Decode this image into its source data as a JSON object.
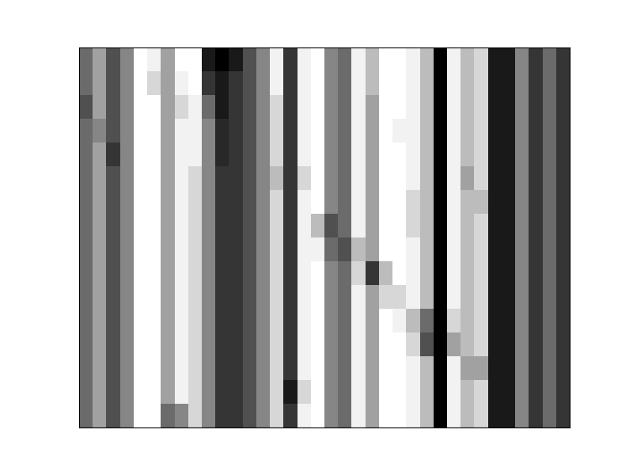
{
  "chart_data": {
    "type": "heatmap",
    "color": "black",
    "tick_labels": false,
    "cells": [
      [
        0.6,
        0.4,
        0.7,
        0.5,
        0.05,
        0.1,
        0.4,
        0.05,
        0.05,
        0.9,
        1.0,
        0.9,
        0.7,
        0.5,
        0.1,
        0.8,
        0.1,
        0.05,
        0.5,
        0.6,
        0.1,
        0.3,
        0.05,
        0.05,
        0.1,
        0.3,
        1.0,
        0.1,
        0.3,
        0.2,
        0.9,
        0.9,
        0.5,
        0.8,
        0.6,
        0.8
      ],
      [
        0.6,
        0.4,
        0.7,
        0.5,
        0.05,
        0.2,
        0.4,
        0.1,
        0.05,
        0.8,
        0.9,
        0.8,
        0.7,
        0.5,
        0.1,
        0.8,
        0.1,
        0.05,
        0.5,
        0.6,
        0.1,
        0.3,
        0.05,
        0.05,
        0.1,
        0.3,
        1.0,
        0.1,
        0.3,
        0.2,
        0.9,
        0.9,
        0.5,
        0.8,
        0.6,
        0.8
      ],
      [
        0.7,
        0.4,
        0.7,
        0.5,
        0.05,
        0.05,
        0.4,
        0.2,
        0.1,
        0.6,
        0.9,
        0.8,
        0.7,
        0.5,
        0.2,
        0.8,
        0.1,
        0.05,
        0.5,
        0.6,
        0.1,
        0.4,
        0.05,
        0.05,
        0.1,
        0.3,
        1.0,
        0.1,
        0.3,
        0.2,
        0.9,
        0.9,
        0.5,
        0.8,
        0.6,
        0.8
      ],
      [
        0.6,
        0.5,
        0.7,
        0.5,
        0.05,
        0.05,
        0.4,
        0.1,
        0.1,
        0.5,
        0.85,
        0.8,
        0.7,
        0.5,
        0.2,
        0.8,
        0.1,
        0.05,
        0.5,
        0.6,
        0.1,
        0.4,
        0.05,
        0.1,
        0.1,
        0.3,
        1.0,
        0.1,
        0.3,
        0.2,
        0.9,
        0.9,
        0.5,
        0.8,
        0.6,
        0.8
      ],
      [
        0.6,
        0.4,
        0.8,
        0.5,
        0.05,
        0.05,
        0.4,
        0.1,
        0.1,
        0.5,
        0.85,
        0.8,
        0.7,
        0.5,
        0.2,
        0.8,
        0.1,
        0.05,
        0.5,
        0.6,
        0.1,
        0.4,
        0.05,
        0.05,
        0.1,
        0.3,
        1.0,
        0.1,
        0.3,
        0.2,
        0.9,
        0.9,
        0.5,
        0.8,
        0.6,
        0.8
      ],
      [
        0.6,
        0.4,
        0.7,
        0.5,
        0.05,
        0.05,
        0.4,
        0.1,
        0.2,
        0.5,
        0.8,
        0.8,
        0.7,
        0.5,
        0.3,
        0.8,
        0.2,
        0.05,
        0.5,
        0.6,
        0.1,
        0.4,
        0.05,
        0.05,
        0.1,
        0.3,
        1.0,
        0.1,
        0.4,
        0.2,
        0.9,
        0.9,
        0.5,
        0.8,
        0.6,
        0.8
      ],
      [
        0.6,
        0.4,
        0.7,
        0.5,
        0.05,
        0.05,
        0.4,
        0.1,
        0.2,
        0.5,
        0.8,
        0.8,
        0.7,
        0.5,
        0.2,
        0.8,
        0.1,
        0.05,
        0.5,
        0.6,
        0.1,
        0.4,
        0.05,
        0.05,
        0.2,
        0.3,
        1.0,
        0.1,
        0.3,
        0.3,
        0.9,
        0.9,
        0.5,
        0.8,
        0.6,
        0.8
      ],
      [
        0.6,
        0.4,
        0.7,
        0.5,
        0.05,
        0.05,
        0.4,
        0.1,
        0.2,
        0.5,
        0.8,
        0.8,
        0.7,
        0.5,
        0.2,
        0.8,
        0.1,
        0.3,
        0.7,
        0.6,
        0.1,
        0.4,
        0.05,
        0.05,
        0.2,
        0.3,
        1.0,
        0.1,
        0.3,
        0.2,
        0.9,
        0.9,
        0.5,
        0.8,
        0.6,
        0.8
      ],
      [
        0.6,
        0.4,
        0.7,
        0.5,
        0.05,
        0.05,
        0.4,
        0.1,
        0.2,
        0.5,
        0.8,
        0.8,
        0.7,
        0.5,
        0.2,
        0.8,
        0.1,
        0.1,
        0.6,
        0.7,
        0.3,
        0.4,
        0.05,
        0.05,
        0.1,
        0.3,
        1.0,
        0.1,
        0.3,
        0.2,
        0.9,
        0.9,
        0.5,
        0.8,
        0.6,
        0.8
      ],
      [
        0.6,
        0.4,
        0.7,
        0.5,
        0.05,
        0.05,
        0.4,
        0.1,
        0.2,
        0.5,
        0.8,
        0.8,
        0.7,
        0.5,
        0.2,
        0.8,
        0.1,
        0.05,
        0.5,
        0.6,
        0.2,
        0.8,
        0.3,
        0.05,
        0.1,
        0.3,
        1.0,
        0.1,
        0.3,
        0.2,
        0.9,
        0.9,
        0.5,
        0.8,
        0.6,
        0.8
      ],
      [
        0.6,
        0.4,
        0.7,
        0.5,
        0.05,
        0.05,
        0.4,
        0.1,
        0.2,
        0.5,
        0.8,
        0.8,
        0.7,
        0.5,
        0.2,
        0.8,
        0.1,
        0.05,
        0.5,
        0.6,
        0.1,
        0.4,
        0.2,
        0.2,
        0.1,
        0.3,
        1.0,
        0.1,
        0.3,
        0.2,
        0.9,
        0.9,
        0.5,
        0.8,
        0.6,
        0.8
      ],
      [
        0.6,
        0.4,
        0.7,
        0.5,
        0.05,
        0.05,
        0.4,
        0.1,
        0.2,
        0.5,
        0.8,
        0.8,
        0.7,
        0.5,
        0.2,
        0.8,
        0.1,
        0.05,
        0.5,
        0.6,
        0.1,
        0.4,
        0.05,
        0.1,
        0.3,
        0.6,
        1.0,
        0.2,
        0.3,
        0.2,
        0.9,
        0.9,
        0.5,
        0.8,
        0.6,
        0.8
      ],
      [
        0.6,
        0.4,
        0.7,
        0.5,
        0.05,
        0.05,
        0.4,
        0.1,
        0.2,
        0.5,
        0.8,
        0.8,
        0.7,
        0.5,
        0.2,
        0.8,
        0.1,
        0.05,
        0.5,
        0.6,
        0.1,
        0.4,
        0.05,
        0.05,
        0.2,
        0.7,
        1.0,
        0.4,
        0.3,
        0.2,
        0.9,
        0.9,
        0.5,
        0.8,
        0.6,
        0.8
      ],
      [
        0.6,
        0.4,
        0.7,
        0.5,
        0.05,
        0.05,
        0.4,
        0.1,
        0.2,
        0.5,
        0.8,
        0.8,
        0.7,
        0.5,
        0.2,
        0.8,
        0.1,
        0.05,
        0.5,
        0.6,
        0.1,
        0.4,
        0.05,
        0.05,
        0.1,
        0.3,
        1.0,
        0.1,
        0.4,
        0.4,
        0.9,
        0.9,
        0.5,
        0.8,
        0.6,
        0.8
      ],
      [
        0.6,
        0.4,
        0.7,
        0.5,
        0.05,
        0.05,
        0.4,
        0.1,
        0.2,
        0.5,
        0.8,
        0.8,
        0.7,
        0.5,
        0.2,
        0.9,
        0.2,
        0.05,
        0.5,
        0.6,
        0.1,
        0.4,
        0.05,
        0.05,
        0.1,
        0.3,
        1.0,
        0.1,
        0.3,
        0.2,
        0.9,
        0.9,
        0.5,
        0.8,
        0.6,
        0.8
      ],
      [
        0.6,
        0.4,
        0.7,
        0.5,
        0.05,
        0.05,
        0.6,
        0.5,
        0.2,
        0.5,
        0.8,
        0.8,
        0.7,
        0.5,
        0.2,
        0.8,
        0.1,
        0.05,
        0.5,
        0.6,
        0.1,
        0.4,
        0.05,
        0.05,
        0.1,
        0.3,
        1.0,
        0.1,
        0.3,
        0.2,
        0.9,
        0.9,
        0.5,
        0.8,
        0.6,
        0.8
      ]
    ]
  }
}
